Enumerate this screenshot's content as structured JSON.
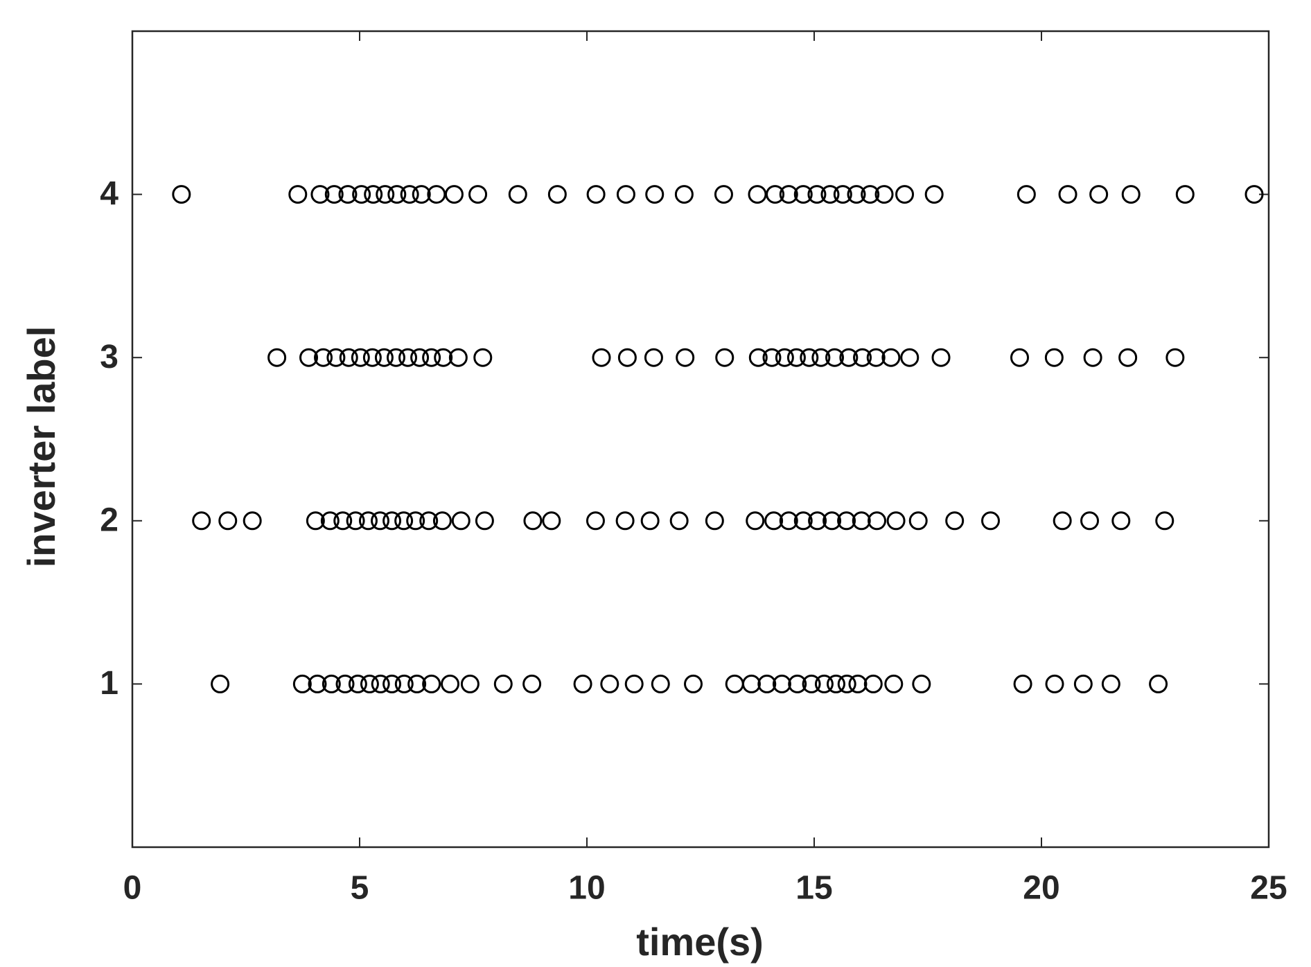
{
  "chart_data": {
    "type": "scatter",
    "xlabel": "time(s)",
    "ylabel": "inverter label",
    "xlim": [
      0,
      25
    ],
    "xticks": [
      0,
      5,
      10,
      15,
      20,
      25
    ],
    "ylim": [
      0,
      5
    ],
    "yticks": [
      1,
      2,
      3,
      4
    ],
    "color": "#000000",
    "series": [
      {
        "x": [
          1.93,
          3.74,
          4.07,
          4.38,
          4.68,
          4.96,
          5.22,
          5.46,
          5.71,
          5.98,
          6.26,
          6.58,
          6.99,
          7.43,
          8.16,
          8.79,
          9.91,
          10.5,
          11.04,
          11.62,
          12.34,
          13.25,
          13.62,
          13.96,
          14.29,
          14.63,
          14.94,
          15.22,
          15.48,
          15.72,
          15.96,
          16.3,
          16.75,
          17.36,
          19.59,
          20.29,
          20.92,
          21.53,
          22.57
        ],
        "y": [
          1,
          1,
          1,
          1,
          1,
          1,
          1,
          1,
          1,
          1,
          1,
          1,
          1,
          1,
          1,
          1,
          1,
          1,
          1,
          1,
          1,
          1,
          1,
          1,
          1,
          1,
          1,
          1,
          1,
          1,
          1,
          1,
          1,
          1,
          1,
          1,
          1,
          1,
          1
        ]
      },
      {
        "x": [
          1.52,
          2.1,
          2.64,
          4.03,
          4.35,
          4.63,
          4.91,
          5.19,
          5.45,
          5.71,
          5.97,
          6.23,
          6.52,
          6.82,
          7.23,
          7.75,
          8.81,
          9.22,
          10.19,
          10.84,
          11.39,
          12.03,
          12.81,
          13.7,
          14.11,
          14.44,
          14.76,
          15.07,
          15.39,
          15.71,
          16.04,
          16.38,
          16.8,
          17.29,
          18.09,
          18.88,
          20.46,
          21.06,
          21.75,
          22.71
        ],
        "y": [
          2,
          2,
          2,
          2,
          2,
          2,
          2,
          2,
          2,
          2,
          2,
          2,
          2,
          2,
          2,
          2,
          2,
          2,
          2,
          2,
          2,
          2,
          2,
          2,
          2,
          2,
          2,
          2,
          2,
          2,
          2,
          2,
          2,
          2,
          2,
          2,
          2,
          2,
          2,
          2
        ]
      },
      {
        "x": [
          3.18,
          3.88,
          4.2,
          4.48,
          4.76,
          5.02,
          5.28,
          5.54,
          5.8,
          6.06,
          6.32,
          6.58,
          6.84,
          7.17,
          7.71,
          10.32,
          10.89,
          11.47,
          12.16,
          13.03,
          13.77,
          14.07,
          14.35,
          14.61,
          14.89,
          15.15,
          15.45,
          15.76,
          16.06,
          16.36,
          16.69,
          17.1,
          17.79,
          19.52,
          20.28,
          21.13,
          21.9,
          22.94
        ],
        "y": [
          3,
          3,
          3,
          3,
          3,
          3,
          3,
          3,
          3,
          3,
          3,
          3,
          3,
          3,
          3,
          3,
          3,
          3,
          3,
          3,
          3,
          3,
          3,
          3,
          3,
          3,
          3,
          3,
          3,
          3,
          3,
          3,
          3,
          3,
          3,
          3,
          3,
          3
        ]
      },
      {
        "x": [
          1.08,
          3.64,
          4.13,
          4.44,
          4.74,
          5.04,
          5.3,
          5.56,
          5.82,
          6.1,
          6.36,
          6.69,
          7.08,
          7.6,
          8.48,
          9.35,
          10.2,
          10.86,
          11.49,
          12.14,
          13.01,
          13.75,
          14.14,
          14.44,
          14.76,
          15.06,
          15.35,
          15.63,
          15.93,
          16.23,
          16.54,
          16.99,
          17.64,
          19.67,
          20.58,
          21.26,
          21.97,
          23.16,
          24.68
        ],
        "y": [
          4,
          4,
          4,
          4,
          4,
          4,
          4,
          4,
          4,
          4,
          4,
          4,
          4,
          4,
          4,
          4,
          4,
          4,
          4,
          4,
          4,
          4,
          4,
          4,
          4,
          4,
          4,
          4,
          4,
          4,
          4,
          4,
          4,
          4,
          4,
          4,
          4,
          4,
          4
        ]
      }
    ]
  }
}
